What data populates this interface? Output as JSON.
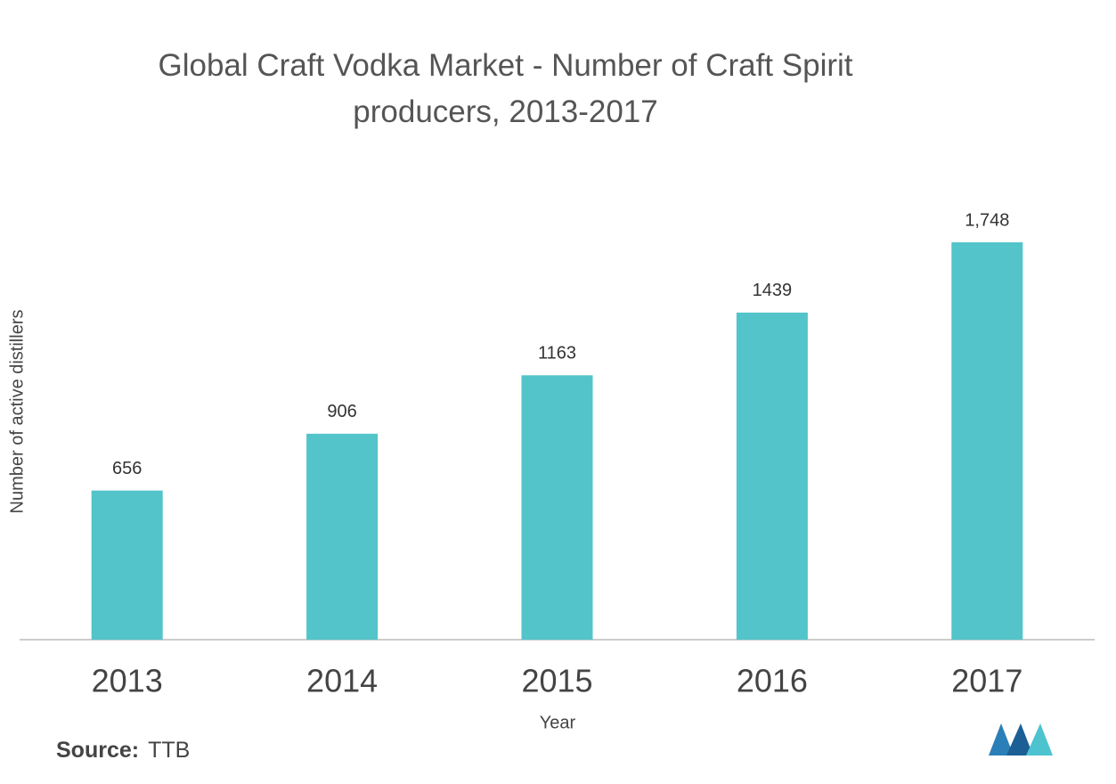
{
  "chart_data": {
    "type": "bar",
    "title": "Global Craft Vodka Market - Number of Craft Spirit producers, 2013-2017",
    "x_label": "Year",
    "y_label": "Number of active distillers",
    "categories": [
      "2013",
      "2014",
      "2015",
      "2016",
      "2017"
    ],
    "values": [
      656,
      906,
      1163,
      1439,
      1748
    ],
    "value_labels": [
      "656",
      "906",
      "1163",
      "1439",
      "1,748"
    ],
    "color": "#52c4ca"
  },
  "source": {
    "label": "Source:",
    "text": "TTB"
  }
}
